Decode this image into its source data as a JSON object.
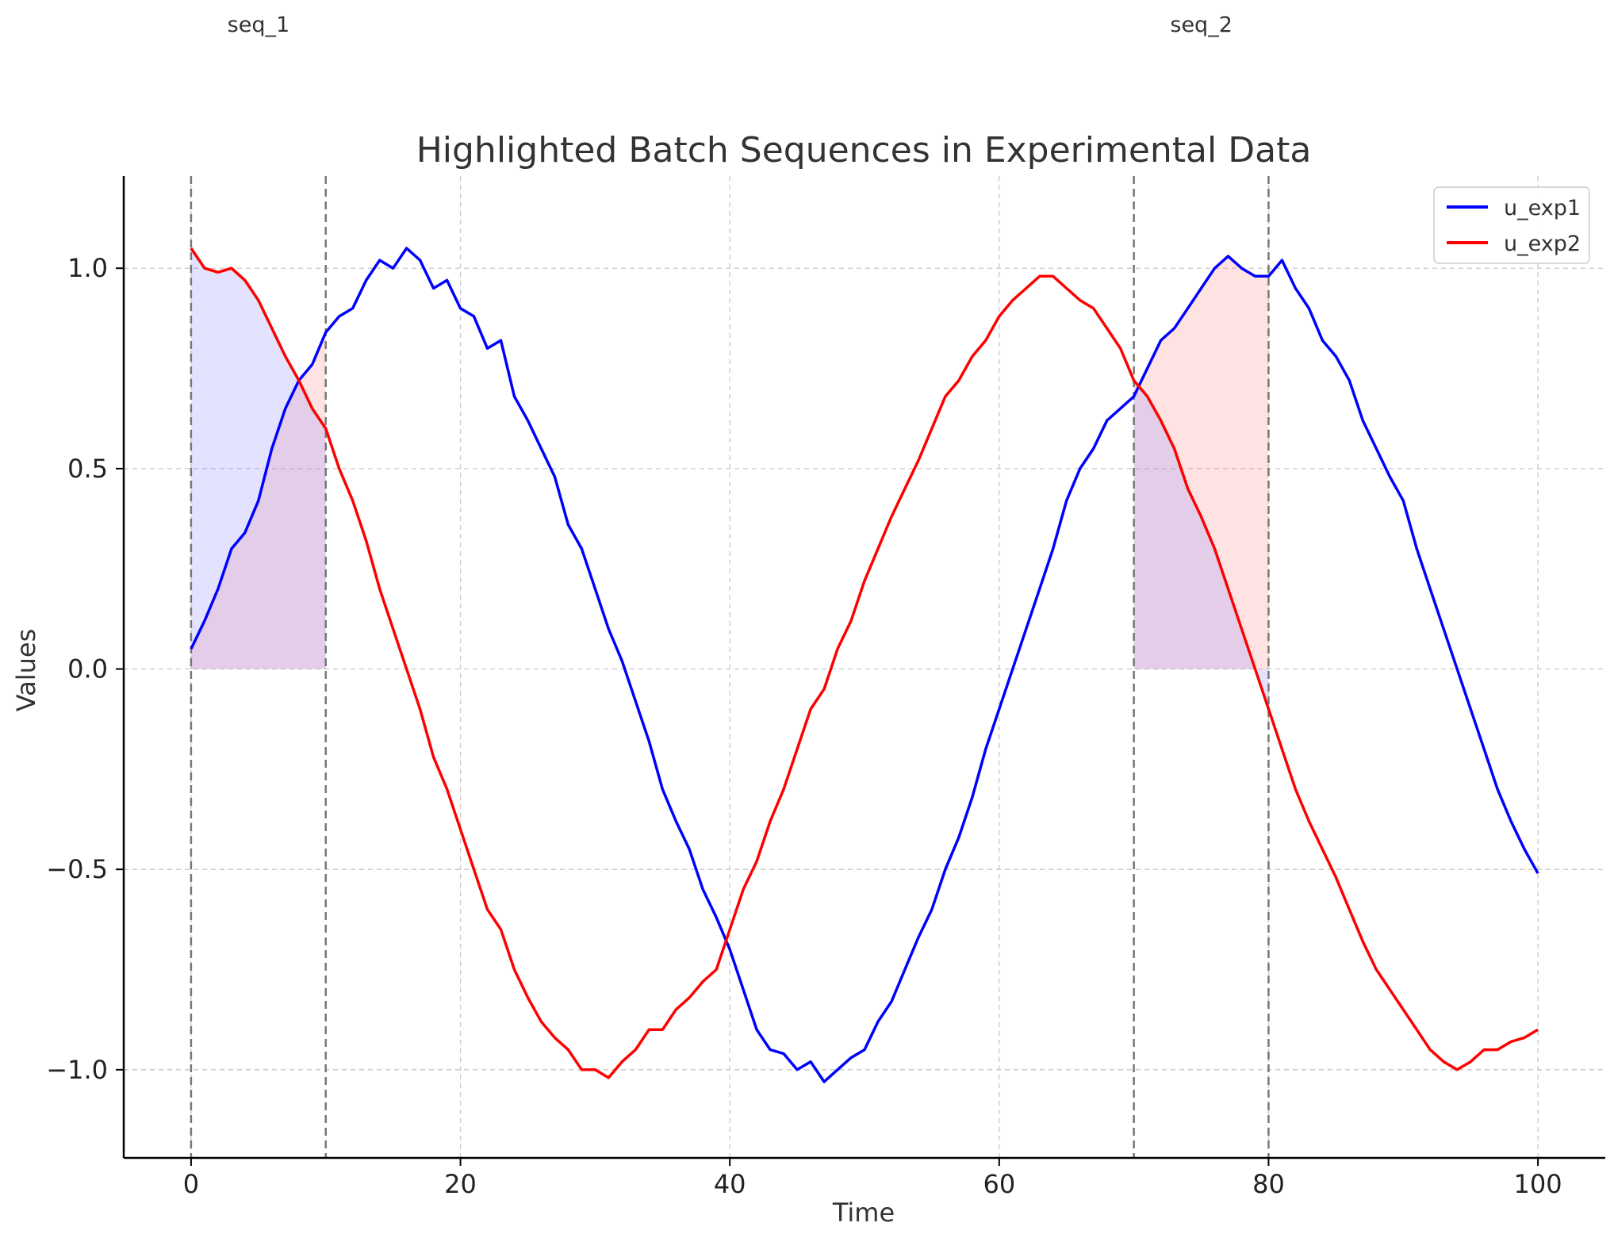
{
  "chart_data": {
    "type": "line",
    "title": "Highlighted Batch Sequences in Experimental Data",
    "xlabel": "Time",
    "ylabel": "Values",
    "xlim": [
      -5,
      105
    ],
    "ylim": [
      -1.22,
      1.23
    ],
    "x_ticks": [
      0,
      20,
      40,
      60,
      80,
      100
    ],
    "y_ticks": [
      -1.0,
      -0.5,
      0.0,
      0.5,
      1.0
    ],
    "y_tick_labels": [
      "−1.0",
      "−0.5",
      "0.0",
      "0.5",
      "1.0"
    ],
    "grid": true,
    "legend_position": "top-right",
    "series": [
      {
        "name": "u_exp1",
        "color": "#0000ff",
        "x": [
          0,
          1,
          2,
          3,
          4,
          5,
          6,
          7,
          8,
          9,
          10,
          11,
          12,
          13,
          14,
          15,
          16,
          17,
          18,
          19,
          20,
          21,
          22,
          23,
          24,
          25,
          26,
          27,
          28,
          29,
          30,
          31,
          32,
          33,
          34,
          35,
          36,
          37,
          38,
          39,
          40,
          41,
          42,
          43,
          44,
          45,
          46,
          47,
          48,
          49,
          50,
          51,
          52,
          53,
          54,
          55,
          56,
          57,
          58,
          59,
          60,
          61,
          62,
          63,
          64,
          65,
          66,
          67,
          68,
          69,
          70,
          71,
          72,
          73,
          74,
          75,
          76,
          77,
          78,
          79,
          80,
          81,
          82,
          83,
          84,
          85,
          86,
          87,
          88,
          89,
          90,
          91,
          92,
          93,
          94,
          95,
          96,
          97,
          98,
          99,
          100
        ],
        "y": [
          0.05,
          0.12,
          0.2,
          0.3,
          0.34,
          0.42,
          0.55,
          0.65,
          0.72,
          0.76,
          0.84,
          0.88,
          0.9,
          0.97,
          1.02,
          1.0,
          1.05,
          1.02,
          0.95,
          0.97,
          0.9,
          0.88,
          0.8,
          0.82,
          0.68,
          0.62,
          0.55,
          0.48,
          0.36,
          0.3,
          0.2,
          0.1,
          0.02,
          -0.08,
          -0.18,
          -0.3,
          -0.38,
          -0.45,
          -0.55,
          -0.62,
          -0.7,
          -0.8,
          -0.9,
          -0.95,
          -0.96,
          -1.0,
          -0.98,
          -1.03,
          -1.0,
          -0.97,
          -0.95,
          -0.88,
          -0.83,
          -0.75,
          -0.67,
          -0.6,
          -0.5,
          -0.42,
          -0.32,
          -0.2,
          -0.1,
          0.0,
          0.1,
          0.2,
          0.3,
          0.42,
          0.5,
          0.55,
          0.62,
          0.65,
          0.68,
          0.75,
          0.82,
          0.85,
          0.9,
          0.95,
          1.0,
          1.03,
          1.0,
          0.98,
          0.98,
          1.02,
          0.95,
          0.9,
          0.82,
          0.78,
          0.72,
          0.62,
          0.55,
          0.48,
          0.42,
          0.3,
          0.2,
          0.1,
          0.0,
          -0.1,
          -0.2,
          -0.3,
          -0.38,
          -0.45,
          -0.51
        ]
      },
      {
        "name": "u_exp2",
        "color": "#ff0000",
        "x": [
          0,
          1,
          2,
          3,
          4,
          5,
          6,
          7,
          8,
          9,
          10,
          11,
          12,
          13,
          14,
          15,
          16,
          17,
          18,
          19,
          20,
          21,
          22,
          23,
          24,
          25,
          26,
          27,
          28,
          29,
          30,
          31,
          32,
          33,
          34,
          35,
          36,
          37,
          38,
          39,
          40,
          41,
          42,
          43,
          44,
          45,
          46,
          47,
          48,
          49,
          50,
          51,
          52,
          53,
          54,
          55,
          56,
          57,
          58,
          59,
          60,
          61,
          62,
          63,
          64,
          65,
          66,
          67,
          68,
          69,
          70,
          71,
          72,
          73,
          74,
          75,
          76,
          77,
          78,
          79,
          80,
          81,
          82,
          83,
          84,
          85,
          86,
          87,
          88,
          89,
          90,
          91,
          92,
          93,
          94,
          95,
          96,
          97,
          98,
          99,
          100
        ],
        "y": [
          1.05,
          1.0,
          0.99,
          1.0,
          0.97,
          0.92,
          0.85,
          0.78,
          0.72,
          0.65,
          0.6,
          0.5,
          0.42,
          0.32,
          0.2,
          0.1,
          0.0,
          -0.1,
          -0.22,
          -0.3,
          -0.4,
          -0.5,
          -0.6,
          -0.65,
          -0.75,
          -0.82,
          -0.88,
          -0.92,
          -0.95,
          -1.0,
          -1.0,
          -1.02,
          -0.98,
          -0.95,
          -0.9,
          -0.9,
          -0.85,
          -0.82,
          -0.78,
          -0.75,
          -0.65,
          -0.55,
          -0.48,
          -0.38,
          -0.3,
          -0.2,
          -0.1,
          -0.05,
          0.05,
          0.12,
          0.22,
          0.3,
          0.38,
          0.45,
          0.52,
          0.6,
          0.68,
          0.72,
          0.78,
          0.82,
          0.88,
          0.92,
          0.95,
          0.98,
          0.98,
          0.95,
          0.92,
          0.9,
          0.85,
          0.8,
          0.72,
          0.68,
          0.62,
          0.55,
          0.45,
          0.38,
          0.3,
          0.2,
          0.1,
          0.0,
          -0.1,
          -0.2,
          -0.3,
          -0.38,
          -0.45,
          -0.52,
          -0.6,
          -0.68,
          -0.75,
          -0.8,
          -0.85,
          -0.9,
          -0.95,
          -0.98,
          -1.0,
          -0.98,
          -0.95,
          -0.95,
          -0.93,
          -0.92,
          -0.9
        ]
      }
    ],
    "highlights": [
      {
        "label": "seq_1",
        "x_start": 0,
        "x_end": 10
      },
      {
        "label": "seq_2",
        "x_start": 70,
        "x_end": 80
      }
    ]
  }
}
